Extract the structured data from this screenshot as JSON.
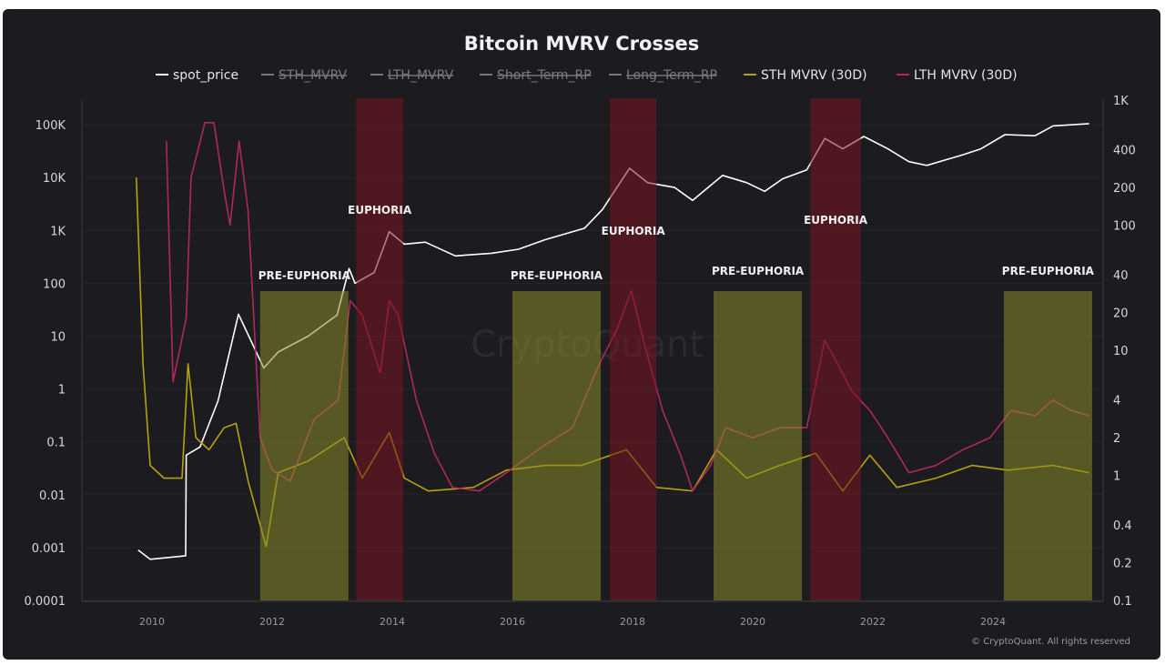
{
  "chart_data": {
    "type": "line",
    "title": "Bitcoin MVRV Crosses",
    "legend": [
      {
        "name": "spot_price",
        "color": "#ffffff",
        "hidden": false
      },
      {
        "name": "STH_MVRV",
        "color": "#9a9a9a",
        "hidden": true
      },
      {
        "name": "LTH_MVRV",
        "color": "#9a9a9a",
        "hidden": true
      },
      {
        "name": "Short_Term_RP",
        "color": "#9a9a9a",
        "hidden": true
      },
      {
        "name": "Long_Term_RP",
        "color": "#9a9a9a",
        "hidden": true
      },
      {
        "name": "STH MVRV (30D)",
        "color": "#b8a20c",
        "hidden": false
      },
      {
        "name": "LTH MVRV (30D)",
        "color": "#b0285a",
        "hidden": false
      }
    ],
    "legend_position": "top",
    "x_ticks": [
      "2010",
      "2012",
      "2014",
      "2016",
      "2018",
      "2020",
      "2022",
      "2024"
    ],
    "left_axis": {
      "scale": "log",
      "range": [
        0.0001,
        100000
      ],
      "ticks": [
        "0.0001",
        "0.001",
        "0.01",
        "0.1",
        "1",
        "10",
        "100",
        "1K",
        "10K",
        "100K"
      ]
    },
    "right_axis": {
      "scale": "log",
      "range": [
        0.1,
        1000
      ],
      "ticks": [
        "0.1",
        "0.2",
        "0.4",
        "1",
        "2",
        "4",
        "10",
        "20",
        "40",
        "100",
        "200",
        "400",
        "1K"
      ]
    },
    "grid": true,
    "series": [
      {
        "name": "spot_price",
        "axis": "left",
        "color": "#ffffff",
        "x": [
          2009.77,
          2009.97,
          2010.56,
          2010.57,
          2010.8,
          2011.1,
          2011.44,
          2011.86,
          2012.1,
          2012.6,
          2013.08,
          2013.28,
          2013.38,
          2013.7,
          2013.95,
          2014.2,
          2014.55,
          2015.05,
          2015.65,
          2016.1,
          2016.55,
          2017.2,
          2017.5,
          2017.95,
          2018.25,
          2018.7,
          2019.0,
          2019.5,
          2019.9,
          2020.2,
          2020.5,
          2020.9,
          2021.2,
          2021.5,
          2021.85,
          2022.25,
          2022.6,
          2022.9,
          2023.5,
          2023.8,
          2024.2,
          2024.7,
          2025.0,
          2025.6
        ],
        "y": [
          0.0009,
          0.0006,
          0.0007,
          0.056,
          0.08,
          0.6,
          26,
          2.5,
          5,
          10,
          25,
          190,
          100,
          160,
          950,
          550,
          600,
          330,
          370,
          440,
          670,
          1100,
          2500,
          15000,
          8000,
          6500,
          3700,
          11000,
          8000,
          5500,
          9500,
          14000,
          55000,
          35000,
          60000,
          35000,
          20000,
          17000,
          27000,
          35000,
          65000,
          62000,
          95000,
          105000
        ]
      },
      {
        "name": "STH MVRV (30D)",
        "axis": "right",
        "color": "#b8a20c",
        "x": [
          2009.74,
          2009.85,
          2009.97,
          2010.2,
          2010.5,
          2010.6,
          2010.73,
          2010.95,
          2011.2,
          2011.4,
          2011.6,
          2011.9,
          2012.1,
          2012.6,
          2013.2,
          2013.5,
          2013.95,
          2014.2,
          2014.6,
          2015.35,
          2015.9,
          2016.55,
          2017.15,
          2017.9,
          2018.4,
          2019.0,
          2019.4,
          2019.9,
          2020.45,
          2021.05,
          2021.5,
          2021.95,
          2022.4,
          2023.05,
          2023.65,
          2024.25,
          2025.0,
          2025.6
        ],
        "y": [
          240,
          7.8,
          1.2,
          0.95,
          0.95,
          7.8,
          2,
          1.6,
          2.4,
          2.6,
          0.9,
          0.27,
          1.05,
          1.3,
          2,
          0.95,
          2.2,
          0.95,
          0.75,
          0.8,
          1.1,
          1.2,
          1.2,
          1.6,
          0.8,
          0.75,
          1.6,
          0.95,
          1.2,
          1.5,
          0.75,
          1.45,
          0.8,
          0.95,
          1.2,
          1.1,
          1.2,
          1.05
        ]
      },
      {
        "name": "LTH MVRV (30D)",
        "axis": "right",
        "color": "#b0285a",
        "x": [
          2010.24,
          2010.35,
          2010.57,
          2010.65,
          2010.88,
          2011.03,
          2011.2,
          2011.3,
          2011.45,
          2011.6,
          2011.8,
          2012.0,
          2012.3,
          2012.7,
          2013.1,
          2013.3,
          2013.5,
          2013.8,
          2013.95,
          2014.1,
          2014.4,
          2014.7,
          2015.0,
          2015.45,
          2015.9,
          2016.5,
          2017.0,
          2017.45,
          2017.75,
          2017.98,
          2018.2,
          2018.5,
          2018.8,
          2019.0,
          2019.3,
          2019.55,
          2020.0,
          2020.45,
          2020.9,
          2021.2,
          2021.4,
          2021.65,
          2021.95,
          2022.25,
          2022.6,
          2023.05,
          2023.5,
          2023.95,
          2024.3,
          2024.7,
          2025.0,
          2025.3,
          2025.6
        ],
        "y": [
          470,
          5.6,
          18,
          240,
          660,
          660,
          190,
          100,
          470,
          130,
          2.0,
          1.1,
          0.9,
          2.8,
          4,
          25,
          19,
          6.6,
          25,
          19,
          4,
          1.5,
          0.8,
          0.75,
          1.05,
          1.7,
          2.4,
          7.8,
          15,
          30,
          11,
          3.3,
          1.45,
          0.75,
          1.2,
          2.4,
          2,
          2.4,
          2.4,
          12,
          8,
          4.7,
          3.3,
          2,
          1.05,
          1.2,
          1.6,
          2,
          3.3,
          3,
          4,
          3.3,
          3
        ]
      }
    ],
    "annotations": {
      "pre_euphoria": [
        {
          "label": "PRE-EUPHORIA",
          "start": 2011.8,
          "end": 2013.27
        },
        {
          "label": "PRE-EUPHORIA",
          "start": 2016.0,
          "end": 2017.47
        },
        {
          "label": "PRE-EUPHORIA",
          "start": 2019.35,
          "end": 2020.82
        },
        {
          "label": "PRE-EUPHORIA",
          "start": 2024.18,
          "end": 2025.65
        }
      ],
      "euphoria": [
        {
          "label": "EUPHORIA",
          "start": 2013.4,
          "end": 2014.18
        },
        {
          "label": "EUPHORIA",
          "start": 2017.62,
          "end": 2018.4
        },
        {
          "label": "EUPHORIA",
          "start": 2020.96,
          "end": 2021.8
        }
      ],
      "pre_color": "#8a8a28",
      "euphoria_color": "#7a1420"
    }
  },
  "watermark": "CryptoQuant",
  "footer": "© CryptoQuant. All rights reserved"
}
